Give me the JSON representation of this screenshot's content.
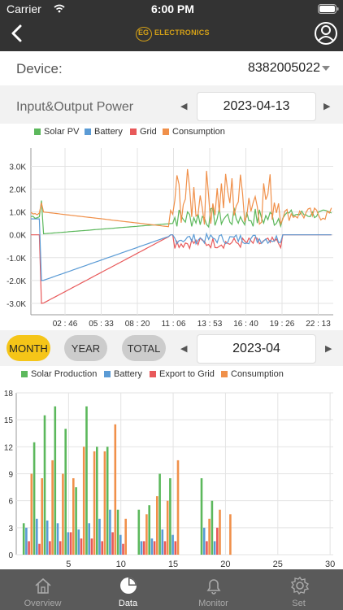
{
  "status": {
    "carrier": "Carrier",
    "time": "6:00 PM"
  },
  "header": {
    "logo_text": "ELECTRONICS",
    "logo_prefix": "EG"
  },
  "device": {
    "label": "Device:",
    "value": "8382005022"
  },
  "power": {
    "title": "Input&Output Power",
    "date": "2023-04-13"
  },
  "period_buttons": {
    "month": "MONTH",
    "year": "YEAR",
    "total": "TOTAL"
  },
  "period_date": "2023-04",
  "colors": {
    "solar": "#5cb85c",
    "battery": "#5b9bd5",
    "grid": "#e8595a",
    "consumption": "#f0904a",
    "accent": "#f5c518"
  },
  "chart_data": [
    {
      "type": "line",
      "series_names": [
        "Solar PV",
        "Battery",
        "Grid",
        "Consumption"
      ],
      "legend": [
        "Solar PV",
        "Battery",
        "Grid",
        "Consumption"
      ],
      "x_tick_labels": [
        "02 : 46",
        "05 : 33",
        "08 : 20",
        "11 : 06",
        "13 : 53",
        "16 : 40",
        "19 : 26",
        "22 : 13"
      ],
      "y_tick_labels": [
        "3.0K",
        "2.0K",
        "1.0K",
        "0.0K",
        "-1.0K",
        "-2.0K",
        "-3.0K"
      ],
      "ylim": [
        -3500,
        3800
      ],
      "grid": true,
      "legend_position": "top"
    },
    {
      "type": "bar",
      "legend": [
        "Solar Production",
        "Battery",
        "Export to Grid",
        "Consumption"
      ],
      "x_tick_labels": [
        "5",
        "10",
        "15",
        "20",
        "25",
        "30"
      ],
      "y_tick_labels": [
        "18",
        "15",
        "12",
        "9",
        "6",
        "3",
        "0"
      ],
      "ylim": [
        0,
        18
      ],
      "grid": true,
      "legend_position": "top",
      "days": [
        1,
        2,
        3,
        4,
        5,
        6,
        7,
        8,
        9,
        10,
        11,
        12,
        13,
        14,
        15,
        16,
        17,
        18,
        19,
        20
      ],
      "series": [
        {
          "name": "Solar Production",
          "values": [
            3.5,
            12.5,
            15.5,
            16.5,
            14,
            7.5,
            16.5,
            12,
            12,
            5,
            0,
            5,
            5.5,
            9,
            8.5,
            0,
            0,
            8.5,
            6,
            0
          ]
        },
        {
          "name": "Battery",
          "values": [
            3,
            4,
            3.8,
            3.5,
            2.5,
            2.8,
            3.5,
            4,
            5,
            2.2,
            0,
            1.5,
            1.8,
            2.8,
            2.2,
            0,
            0,
            3,
            1.5,
            0
          ]
        },
        {
          "name": "Export to Grid",
          "values": [
            1.5,
            1.2,
            1.5,
            1.5,
            2.5,
            1.8,
            1.8,
            1.5,
            2.5,
            1.2,
            0,
            1.5,
            1.5,
            1.5,
            1.5,
            0,
            0,
            1.5,
            3,
            0
          ]
        },
        {
          "name": "Consumption",
          "values": [
            9,
            8.5,
            10.5,
            9,
            8.5,
            12,
            11.5,
            11.5,
            14.5,
            4,
            0,
            4.5,
            6.5,
            6,
            10.5,
            0,
            0,
            4,
            5,
            4.5
          ]
        }
      ]
    }
  ],
  "tabs": [
    {
      "label": "Overview"
    },
    {
      "label": "Data"
    },
    {
      "label": "Monitor"
    },
    {
      "label": "Set"
    }
  ]
}
